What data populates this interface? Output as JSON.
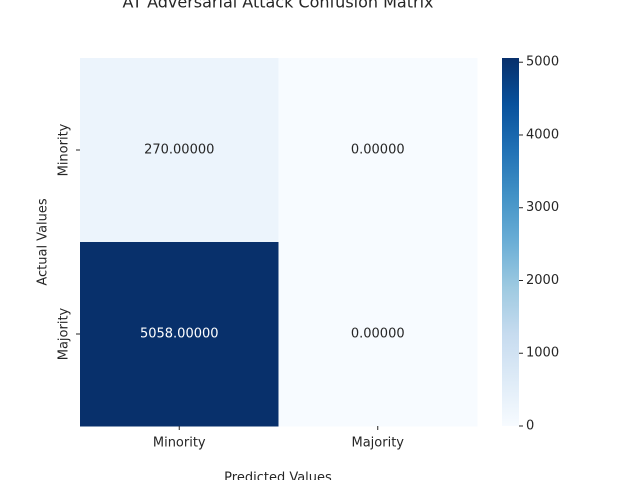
{
  "chart_data": {
    "type": "heatmap",
    "title": "AT Adversarial Attack Confusion Matrix",
    "xlabel": "Predicted Values",
    "ylabel": "Actual Values",
    "x_categories": [
      "Minority",
      "Majority"
    ],
    "y_categories": [
      "Minority",
      "Majority"
    ],
    "values": [
      [
        270,
        0
      ],
      [
        5058,
        0
      ]
    ],
    "value_labels": [
      [
        "270.00000",
        "0.00000"
      ],
      [
        "5058.00000",
        "0.00000"
      ]
    ],
    "colormap": "Blues",
    "clim": [
      0,
      5058
    ],
    "cticks": [
      0,
      1000,
      2000,
      3000,
      4000,
      5000
    ]
  }
}
